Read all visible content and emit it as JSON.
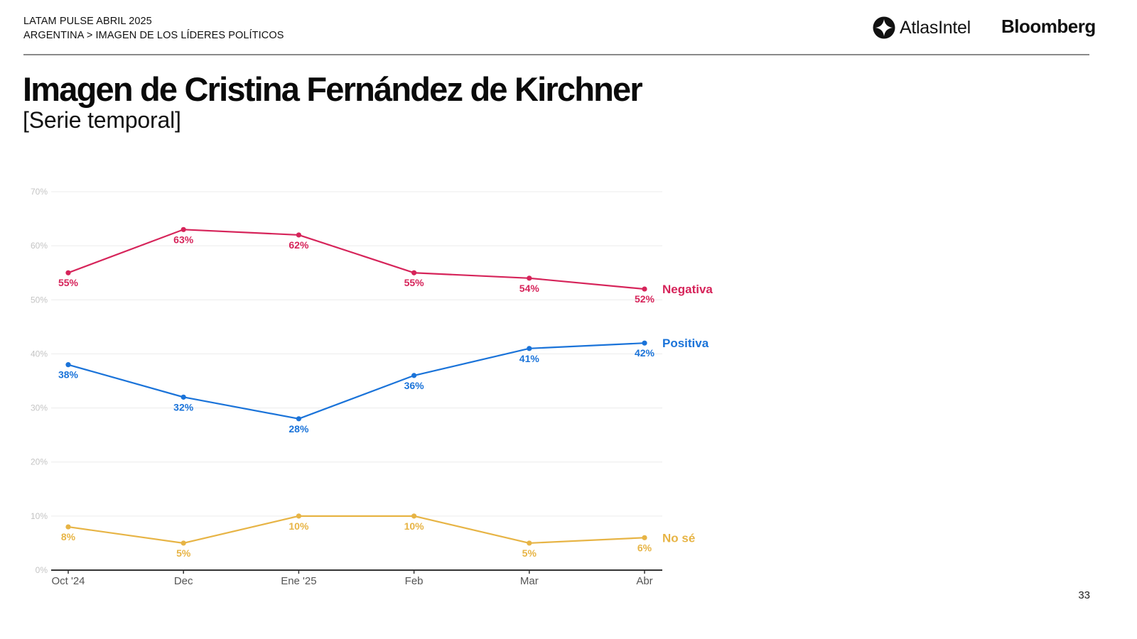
{
  "header": {
    "line1": "LATAM PULSE ABRIL 2025",
    "line2": "ARGENTINA > IMAGEN DE LOS LÍDERES POLÍTICOS",
    "logo_atlas": "AtlasIntel",
    "logo_bloomberg": "Bloomberg"
  },
  "title": "Imagen de Cristina Fernández de Kirchner",
  "subtitle": "[Serie temporal]",
  "page_number": "33",
  "chart_data": {
    "type": "line",
    "title": "Imagen de Cristina Fernández de Kirchner",
    "subtitle": "[Serie temporal]",
    "xlabel": "",
    "ylabel": "",
    "categories": [
      "Oct '24",
      "Dec",
      "Ene '25",
      "Feb",
      "Mar",
      "Abr"
    ],
    "ylim": [
      0,
      70
    ],
    "yticks": [
      0,
      10,
      20,
      30,
      40,
      50,
      60,
      70
    ],
    "ytick_labels": [
      "0%",
      "10%",
      "20%",
      "30%",
      "40%",
      "50%",
      "60%",
      "70%"
    ],
    "grid": true,
    "legend": "inline labels at right end of lines",
    "series": [
      {
        "name": "Negativa",
        "color": "#d6245a",
        "values": [
          55,
          63,
          62,
          55,
          54,
          52
        ],
        "labels": [
          "55%",
          "63%",
          "62%",
          "55%",
          "54%",
          "52%"
        ]
      },
      {
        "name": "Positiva",
        "color": "#1a73d9",
        "values": [
          38,
          32,
          28,
          36,
          41,
          42
        ],
        "labels": [
          "38%",
          "32%",
          "28%",
          "36%",
          "41%",
          "42%"
        ]
      },
      {
        "name": "No sé",
        "color": "#e7b445",
        "values": [
          8,
          5,
          10,
          10,
          5,
          6
        ],
        "labels": [
          "8%",
          "5%",
          "10%",
          "10%",
          "5%",
          "6%"
        ]
      }
    ]
  }
}
